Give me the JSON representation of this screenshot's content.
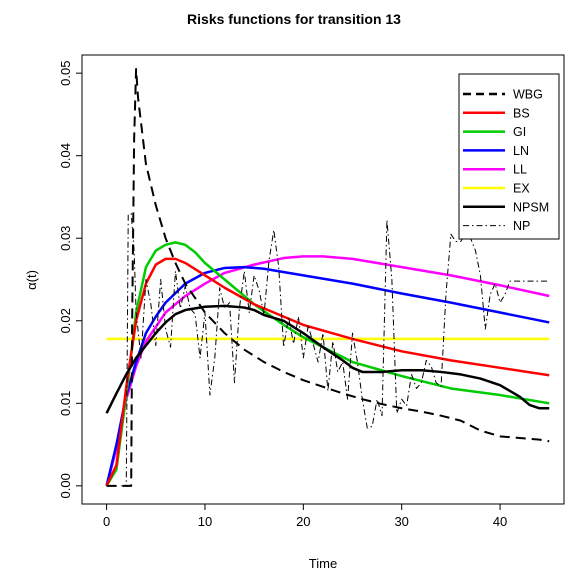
{
  "chart_data": {
    "type": "line",
    "title": "Risks functions for transition 13",
    "xlabel": "Time",
    "ylabel": "α(t)",
    "xlim": [
      -2.5,
      46.5
    ],
    "ylim": [
      -0.0022,
      0.0522
    ],
    "xticks": [
      0,
      10,
      20,
      30,
      40
    ],
    "yticks": [
      0.0,
      0.01,
      0.02,
      0.03,
      0.04,
      0.05
    ],
    "ytick_labels": [
      "0.00",
      "0.01",
      "0.02",
      "0.03",
      "0.04",
      "0.05"
    ],
    "legend_position": "top-right",
    "series": [
      {
        "name": "WBG",
        "color": "#000000",
        "dash": "dashed",
        "width": 2,
        "x": [
          0,
          2.5,
          2.6,
          2.8,
          3.0,
          3.2,
          4,
          5,
          6,
          7,
          8,
          10,
          12,
          14,
          16,
          18,
          20,
          22,
          24,
          26,
          28,
          30,
          32,
          34,
          36,
          38,
          40,
          42,
          44,
          45
        ],
        "y": [
          0,
          0,
          0.02,
          0.042,
          0.0505,
          0.047,
          0.039,
          0.034,
          0.03,
          0.027,
          0.0245,
          0.021,
          0.0185,
          0.0165,
          0.015,
          0.0138,
          0.0128,
          0.012,
          0.0112,
          0.0105,
          0.0099,
          0.0094,
          0.009,
          0.0085,
          0.0079,
          0.0067,
          0.006,
          0.0058,
          0.0056,
          0.0054
        ]
      },
      {
        "name": "BS",
        "color": "#ff0000",
        "dash": "solid",
        "width": 2.5,
        "x": [
          0,
          1,
          2,
          3,
          4,
          5,
          6,
          7,
          8,
          10,
          12,
          15,
          18,
          20,
          25,
          30,
          35,
          40,
          45
        ],
        "y": [
          0,
          0.0025,
          0.012,
          0.02,
          0.0245,
          0.0268,
          0.0275,
          0.0275,
          0.027,
          0.0255,
          0.024,
          0.022,
          0.0205,
          0.0195,
          0.0178,
          0.0163,
          0.0152,
          0.0143,
          0.0134
        ]
      },
      {
        "name": "GI",
        "color": "#00cc00",
        "dash": "solid",
        "width": 2.5,
        "x": [
          0,
          1,
          2,
          3,
          4,
          5,
          6,
          7,
          8,
          9,
          10,
          12,
          15,
          18,
          20,
          25,
          30,
          35,
          40,
          45
        ],
        "y": [
          0,
          0.002,
          0.011,
          0.021,
          0.0265,
          0.0285,
          0.0292,
          0.0295,
          0.0292,
          0.0283,
          0.027,
          0.025,
          0.022,
          0.0195,
          0.018,
          0.015,
          0.0133,
          0.0118,
          0.011,
          0.01
        ]
      },
      {
        "name": "LN",
        "color": "#0000ff",
        "dash": "solid",
        "width": 2.5,
        "x": [
          0,
          1,
          2,
          3,
          4,
          5,
          6,
          8,
          10,
          12,
          14,
          16,
          20,
          25,
          30,
          35,
          40,
          45
        ],
        "y": [
          0,
          0.005,
          0.011,
          0.015,
          0.0185,
          0.0205,
          0.0222,
          0.0245,
          0.0258,
          0.0264,
          0.0265,
          0.0263,
          0.0255,
          0.0245,
          0.0233,
          0.0222,
          0.021,
          0.0198
        ]
      },
      {
        "name": "LL",
        "color": "#ff00ff",
        "dash": "solid",
        "width": 2.5,
        "x": [
          0,
          1,
          2,
          3,
          4,
          6,
          8,
          10,
          12,
          15,
          18,
          20,
          22,
          25,
          30,
          35,
          40,
          45
        ],
        "y": [
          0,
          0.0045,
          0.0105,
          0.0145,
          0.0175,
          0.021,
          0.023,
          0.0245,
          0.0258,
          0.0268,
          0.0276,
          0.0278,
          0.0278,
          0.0275,
          0.0265,
          0.0255,
          0.0243,
          0.023
        ]
      },
      {
        "name": "EX",
        "color": "#ffff00",
        "dash": "solid",
        "width": 2.5,
        "x": [
          0,
          45
        ],
        "y": [
          0.0178,
          0.0178
        ]
      },
      {
        "name": "NPSM",
        "color": "#000000",
        "dash": "solid",
        "width": 2.5,
        "x": [
          0,
          1,
          2,
          3,
          4,
          5,
          6,
          7,
          8,
          10,
          12,
          14,
          15,
          16,
          18,
          20,
          22,
          24,
          25,
          26,
          28,
          30,
          32,
          34,
          36,
          38,
          40,
          42,
          43,
          44,
          45
        ],
        "y": [
          0.0088,
          0.0112,
          0.0135,
          0.0155,
          0.017,
          0.0185,
          0.0198,
          0.0208,
          0.0213,
          0.0217,
          0.0218,
          0.0216,
          0.0213,
          0.0207,
          0.02,
          0.0185,
          0.0168,
          0.0152,
          0.0143,
          0.0138,
          0.0138,
          0.014,
          0.014,
          0.0138,
          0.0135,
          0.013,
          0.0122,
          0.0108,
          0.0098,
          0.0094,
          0.0094
        ]
      },
      {
        "name": "NP",
        "color": "#000000",
        "dash": "dotdash",
        "width": 1,
        "x": [
          1.5,
          2.0,
          2.2,
          2.5,
          2.8,
          3.0,
          3.5,
          4.0,
          4.5,
          5.0,
          5.5,
          6.0,
          6.5,
          7.0,
          7.5,
          8.0,
          8.5,
          9.0,
          9.5,
          10.0,
          10.5,
          11.0,
          11.5,
          12.0,
          12.5,
          13.0,
          13.5,
          14.0,
          14.5,
          15.0,
          15.5,
          16.0,
          16.5,
          17.0,
          17.5,
          18.0,
          18.5,
          19.0,
          19.5,
          20.0,
          20.5,
          21.0,
          21.5,
          22.0,
          22.5,
          23.0,
          23.5,
          24.0,
          24.5,
          25.0,
          25.5,
          26.0,
          26.5,
          27.0,
          27.5,
          28.0,
          28.5,
          29.0,
          29.5,
          30.0,
          30.5,
          31.0,
          31.5,
          32.0,
          32.5,
          33.0,
          33.5,
          34.0,
          34.5,
          35.0,
          35.5,
          36.0,
          36.5,
          37.0,
          37.5,
          38.0,
          38.5,
          39.0,
          39.5,
          40.0,
          40.5,
          41.0,
          42.0,
          43.0,
          44.0,
          45.0
        ],
        "y": [
          0.0,
          0.0,
          0.0328,
          0.033,
          0.0285,
          0.021,
          0.0155,
          0.025,
          0.022,
          0.017,
          0.025,
          0.019,
          0.0168,
          0.026,
          0.0215,
          0.0242,
          0.0215,
          0.0208,
          0.0155,
          0.021,
          0.011,
          0.0155,
          0.024,
          0.0215,
          0.0222,
          0.0125,
          0.0215,
          0.026,
          0.021,
          0.0255,
          0.0237,
          0.0207,
          0.0272,
          0.031,
          0.0265,
          0.0168,
          0.0205,
          0.0172,
          0.0205,
          0.0155,
          0.0195,
          0.0172,
          0.015,
          0.0185,
          0.0115,
          0.0175,
          0.0138,
          0.015,
          0.0105,
          0.0185,
          0.015,
          0.0105,
          0.007,
          0.0072,
          0.0105,
          0.0085,
          0.0322,
          0.025,
          0.0088,
          0.0105,
          0.0097,
          0.0135,
          0.0118,
          0.0125,
          0.0152,
          0.0145,
          0.0125,
          0.012,
          0.0232,
          0.0305,
          0.0296,
          0.0296,
          0.0305,
          0.03,
          0.0285,
          0.0255,
          0.019,
          0.0232,
          0.0245,
          0.0222,
          0.0232,
          0.0248,
          0.0248,
          0.0248,
          0.0248,
          0.0248
        ]
      }
    ]
  }
}
